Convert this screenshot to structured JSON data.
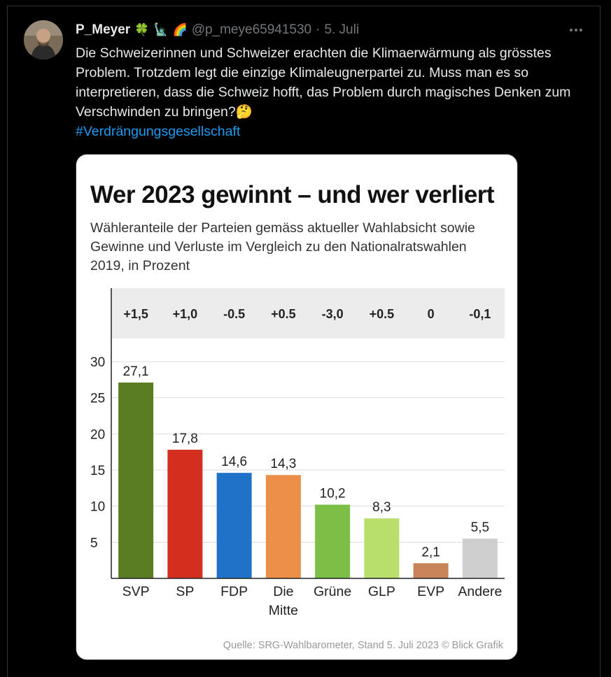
{
  "tweet": {
    "display_name": "P_Meyer",
    "emojis": [
      "🍀",
      "🗽",
      "🌈"
    ],
    "handle": "@p_meye65941530",
    "separator": "·",
    "date": "5. Juli",
    "more_icon": "more-icon",
    "text": "Die Schweizerinnen und Schweizer erachten die Klimaerwärmung als grösstes Problem. Trotzdem legt die einzige Klimaleugnerpartei zu. Muss man es so interpretieren, dass die Schweiz hofft, das Problem durch magisches Denken zum Verschwinden zu bringen?🤔",
    "hashtag": "#Verdrängungsgesellschaft"
  },
  "chart_data": {
    "type": "bar",
    "title": "Wer 2023 gewinnt – und wer verliert",
    "subtitle": "Wähleranteile der Parteien gemäss aktueller Wahlabsicht sowie Gewinne und Verluste im Vergleich zu den Nationalratswahlen 2019, in Prozent",
    "source": "Quelle: SRG-Wahlbarometer, Stand 5. Juli 2023 © Blick Grafik",
    "categories": [
      "SVP",
      "SP",
      "FDP",
      "Die Mitte",
      "Grüne",
      "GLP",
      "EVP",
      "Andere"
    ],
    "values": [
      27.1,
      17.8,
      14.6,
      14.3,
      10.2,
      8.3,
      2.1,
      5.5
    ],
    "value_labels": [
      "27,1",
      "17,8",
      "14,6",
      "14,3",
      "10,2",
      "8,3",
      "2,1",
      "5,5"
    ],
    "changes": [
      "+1,5",
      "+1,0",
      "-0.5",
      "+0.5",
      "-3,0",
      "+0.5",
      "0",
      "-0,1"
    ],
    "colors": [
      "#5a7d23",
      "#d42e1e",
      "#1f72c7",
      "#ec8f48",
      "#7dbf46",
      "#b8df6b",
      "#c98459",
      "#cfcfcf"
    ],
    "yticks": [
      5,
      10,
      15,
      20,
      25,
      30
    ],
    "ylim": [
      0,
      30
    ],
    "grid": true
  }
}
